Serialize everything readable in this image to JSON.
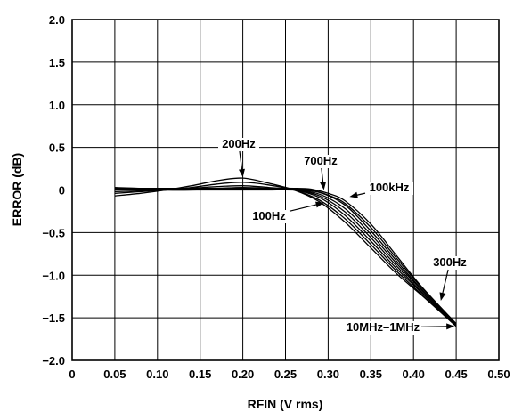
{
  "chart_data": {
    "type": "line",
    "title": "",
    "xlabel": "RFIN (V rms)",
    "ylabel": "ERROR (dB)",
    "xlim": [
      0,
      0.5
    ],
    "ylim": [
      -2.0,
      2.0
    ],
    "grid": true,
    "x_tick_labels": [
      "0",
      "0.05",
      "0.10",
      "0.15",
      "0.20",
      "0.25",
      "0.30",
      "0.35",
      "0.40",
      "0.45",
      "0.50"
    ],
    "y_tick_labels": [
      "2.0",
      "1.5",
      "1.0",
      "0.5",
      "0",
      "−0.5",
      "−1.0",
      "−1.5",
      "−2.0"
    ],
    "annotations": [
      {
        "text": "200Hz",
        "x_data": 0.2,
        "y_data": 0.15
      },
      {
        "text": "700Hz",
        "x_data": 0.295,
        "y_data": 0.0
      },
      {
        "text": "100kHz",
        "x_data": 0.325,
        "y_data": -0.08
      },
      {
        "text": "100Hz",
        "x_data": 0.295,
        "y_data": -0.15
      },
      {
        "text": "300Hz",
        "x_data": 0.432,
        "y_data": -1.3
      },
      {
        "text": "10MHz–1MHz",
        "x_data": 0.448,
        "y_data": -1.6
      }
    ],
    "series": [
      {
        "x": [
          0.05,
          0.08,
          0.11,
          0.14,
          0.17,
          0.2,
          0.23,
          0.26,
          0.29,
          0.32,
          0.35,
          0.38,
          0.41,
          0.45
        ],
        "y": [
          -0.07,
          -0.04,
          0.0,
          0.05,
          0.11,
          0.14,
          0.08,
          0.0,
          -0.14,
          -0.38,
          -0.68,
          -0.98,
          -1.24,
          -1.6
        ]
      },
      {
        "x": [
          0.05,
          0.08,
          0.11,
          0.14,
          0.17,
          0.2,
          0.23,
          0.26,
          0.29,
          0.32,
          0.35,
          0.38,
          0.41,
          0.45
        ],
        "y": [
          -0.04,
          -0.02,
          0.0,
          0.03,
          0.07,
          0.09,
          0.06,
          0.0,
          -0.12,
          -0.34,
          -0.64,
          -0.95,
          -1.23,
          -1.6
        ]
      },
      {
        "x": [
          0.05,
          0.08,
          0.11,
          0.14,
          0.17,
          0.2,
          0.23,
          0.26,
          0.29,
          0.32,
          0.35,
          0.38,
          0.41,
          0.45
        ],
        "y": [
          -0.02,
          -0.01,
          0.0,
          0.02,
          0.04,
          0.05,
          0.03,
          0.0,
          -0.09,
          -0.3,
          -0.6,
          -0.92,
          -1.21,
          -1.59
        ]
      },
      {
        "x": [
          0.05,
          0.08,
          0.11,
          0.14,
          0.17,
          0.2,
          0.23,
          0.26,
          0.29,
          0.32,
          0.35,
          0.38,
          0.41,
          0.45
        ],
        "y": [
          0.0,
          0.0,
          0.0,
          0.01,
          0.02,
          0.03,
          0.02,
          0.0,
          -0.07,
          -0.26,
          -0.56,
          -0.89,
          -1.2,
          -1.59
        ]
      },
      {
        "x": [
          0.05,
          0.08,
          0.11,
          0.14,
          0.17,
          0.2,
          0.23,
          0.26,
          0.29,
          0.32,
          0.35,
          0.38,
          0.41,
          0.45
        ],
        "y": [
          0.01,
          0.01,
          0.0,
          0.0,
          0.01,
          0.01,
          0.01,
          0.0,
          -0.05,
          -0.22,
          -0.52,
          -0.86,
          -1.18,
          -1.58
        ]
      },
      {
        "x": [
          0.05,
          0.08,
          0.11,
          0.14,
          0.17,
          0.2,
          0.23,
          0.26,
          0.29,
          0.32,
          0.35,
          0.38,
          0.41,
          0.45
        ],
        "y": [
          0.02,
          0.01,
          0.0,
          0.0,
          0.0,
          0.0,
          0.0,
          0.0,
          -0.03,
          -0.18,
          -0.48,
          -0.83,
          -1.17,
          -1.58
        ]
      },
      {
        "x": [
          0.05,
          0.08,
          0.11,
          0.14,
          0.17,
          0.2,
          0.23,
          0.26,
          0.28,
          0.3,
          0.32,
          0.35,
          0.38,
          0.41,
          0.45
        ],
        "y": [
          0.02,
          0.02,
          0.01,
          0.01,
          0.01,
          0.01,
          0.01,
          0.01,
          0.0,
          -0.06,
          -0.16,
          -0.44,
          -0.8,
          -1.15,
          -1.57
        ]
      },
      {
        "x": [
          0.05,
          0.08,
          0.11,
          0.14,
          0.17,
          0.2,
          0.23,
          0.26,
          0.28,
          0.3,
          0.32,
          0.35,
          0.38,
          0.41,
          0.45
        ],
        "y": [
          0.03,
          0.02,
          0.02,
          0.02,
          0.02,
          0.02,
          0.02,
          0.02,
          0.01,
          -0.04,
          -0.13,
          -0.4,
          -0.77,
          -1.14,
          -1.57
        ]
      }
    ]
  }
}
